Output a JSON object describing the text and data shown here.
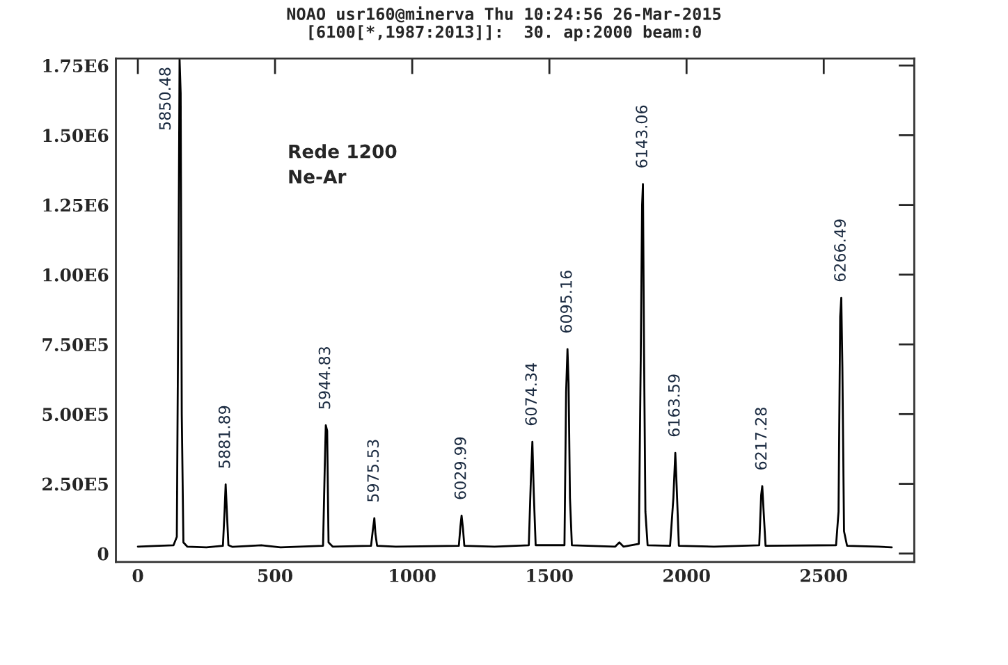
{
  "chart_data": {
    "type": "line",
    "title": "NOAO usr160@minerva Thu 10:24:56 26-Mar-2015",
    "subtitle": "[6100[*,1987:2013]]:  30. ap:2000 beam:0",
    "series": [
      {
        "color": "#000000",
        "x": [
          0,
          60,
          130,
          142,
          148,
          152,
          156,
          160,
          166,
          180,
          250,
          310,
          316,
          320,
          324,
          330,
          345,
          450,
          520,
          675,
          681,
          685,
          690,
          695,
          710,
          850,
          856,
          862,
          866,
          872,
          940,
          1170,
          1176,
          1180,
          1185,
          1190,
          1300,
          1425,
          1432,
          1438,
          1443,
          1450,
          1555,
          1561,
          1566,
          1570,
          1575,
          1582,
          1740,
          1755,
          1770,
          1826,
          1833,
          1838,
          1841,
          1845,
          1850,
          1858,
          1940,
          1952,
          1959,
          1964,
          1972,
          2100,
          2265,
          2272,
          2276,
          2281,
          2288,
          2545,
          2554,
          2560,
          2564,
          2568,
          2574,
          2585,
          2700,
          2748
        ],
        "values": [
          25000,
          27000,
          30000,
          60000,
          1000000,
          1773000,
          1650000,
          500000,
          40000,
          25000,
          22000,
          28000,
          150000,
          248000,
          160000,
          30000,
          24000,
          30000,
          22000,
          28000,
          300000,
          460000,
          440000,
          40000,
          25000,
          28000,
          80000,
          127000,
          70000,
          28000,
          25000,
          28000,
          100000,
          136000,
          90000,
          28000,
          25000,
          30000,
          250000,
          401000,
          220000,
          30000,
          30000,
          580000,
          733000,
          610000,
          200000,
          30000,
          25000,
          40000,
          25000,
          35000,
          700000,
          1250000,
          1325000,
          730000,
          150000,
          30000,
          28000,
          200000,
          361000,
          240000,
          28000,
          25000,
          30000,
          210000,
          242000,
          150000,
          28000,
          30000,
          150000,
          850000,
          917000,
          670000,
          80000,
          28000,
          25000,
          22000
        ]
      }
    ],
    "annotations": [
      {
        "text": "5850.48",
        "x": 152,
        "y": 1773000
      },
      {
        "text": "5881.89",
        "x": 320,
        "y": 248000
      },
      {
        "text": "5944.83",
        "x": 685,
        "y": 460000
      },
      {
        "text": "5975.53",
        "x": 862,
        "y": 127000
      },
      {
        "text": "6029.99",
        "x": 1180,
        "y": 136000
      },
      {
        "text": "6074.34",
        "x": 1438,
        "y": 401000
      },
      {
        "text": "6095.16",
        "x": 1566,
        "y": 733000
      },
      {
        "text": "6143.06",
        "x": 1841,
        "y": 1325000
      },
      {
        "text": "6163.59",
        "x": 1959,
        "y": 361000
      },
      {
        "text": "6217.28",
        "x": 2276,
        "y": 242000
      },
      {
        "text": "6266.49",
        "x": 2564,
        "y": 917000
      },
      "Rede 1200",
      "Ne-Ar"
    ],
    "xlim": [
      -80,
      2830
    ],
    "xticks": [
      0,
      500,
      1000,
      1500,
      2000,
      2500
    ],
    "ylim": [
      -30000,
      1775000
    ],
    "yticks": [
      0,
      {
        "value": 250000,
        "label": "2.50E5"
      },
      {
        "value": 500000,
        "label": "5.00E5"
      },
      {
        "value": 750000,
        "label": "7.50E5"
      },
      {
        "value": 1000000,
        "label": "1.00E6"
      },
      {
        "value": 1250000,
        "label": "1.25E6"
      },
      {
        "value": 1500000,
        "label": "1.50E6"
      },
      {
        "value": 1750000,
        "label": "1.75E6"
      }
    ],
    "grid": false,
    "legend": false,
    "marker": "none",
    "line_style": "solid"
  }
}
